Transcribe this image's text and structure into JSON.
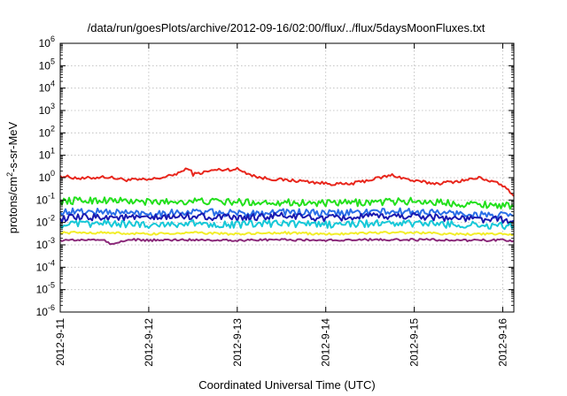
{
  "chart_data": {
    "type": "line",
    "title": "/data/run/goesPlots/archive/2012-09-16/02:00/flux/../flux/5daysMoonFluxes.txt",
    "xlabel": "Coordinated Universal Time (UTC)",
    "ylabel": {
      "prefix": "protons/cm",
      "sup": "2",
      "suffix": "-s-sr-MeV"
    },
    "y_scale": "log",
    "ylim": [
      1e-06,
      1000000.0
    ],
    "y_ticks": [
      {
        "base": "10",
        "exp": "-6"
      },
      {
        "base": "10",
        "exp": "-5"
      },
      {
        "base": "10",
        "exp": "-4"
      },
      {
        "base": "10",
        "exp": "-3"
      },
      {
        "base": "10",
        "exp": "-2"
      },
      {
        "base": "10",
        "exp": "-1"
      },
      {
        "base": "10",
        "exp": "0"
      },
      {
        "base": "10",
        "exp": "1"
      },
      {
        "base": "10",
        "exp": "2"
      },
      {
        "base": "10",
        "exp": "3"
      },
      {
        "base": "10",
        "exp": "4"
      },
      {
        "base": "10",
        "exp": "5"
      },
      {
        "base": "10",
        "exp": "6"
      }
    ],
    "xlim": [
      "2012-09-11",
      "2012-09-16 03:00"
    ],
    "x_ticks": [
      "2012-9-11",
      "2012-9-12",
      "2012-9-13",
      "2012-9-14",
      "2012-9-15",
      "2012-9-16"
    ],
    "grid": true,
    "series": [
      {
        "color": "#e8261c",
        "x": [
          "2012-09-11 00:00",
          "2012-09-11 06:00",
          "2012-09-11 12:00",
          "2012-09-11 18:00",
          "2012-09-12 00:00",
          "2012-09-12 06:00",
          "2012-09-12 11:00",
          "2012-09-12 12:00",
          "2012-09-12 18:00",
          "2012-09-13 00:00",
          "2012-09-13 06:00",
          "2012-09-13 12:00",
          "2012-09-13 18:00",
          "2012-09-14 00:00",
          "2012-09-14 06:00",
          "2012-09-14 12:00",
          "2012-09-14 18:00",
          "2012-09-15 00:00",
          "2012-09-15 06:00",
          "2012-09-15 12:00",
          "2012-09-15 18:00",
          "2012-09-16 00:00",
          "2012-09-16 03:00"
        ],
        "values": [
          1.2,
          0.9,
          1.1,
          0.8,
          0.8,
          1.2,
          2.6,
          1.4,
          2.2,
          2.4,
          1.0,
          0.8,
          0.7,
          0.55,
          0.5,
          0.8,
          1.3,
          0.7,
          0.55,
          0.7,
          1.0,
          0.45,
          0.15
        ]
      },
      {
        "color": "#22e01c",
        "x": [
          "2012-09-11 00:00",
          "2012-09-11 12:00",
          "2012-09-12 00:00",
          "2012-09-12 12:00",
          "2012-09-13 00:00",
          "2012-09-13 12:00",
          "2012-09-14 00:00",
          "2012-09-14 12:00",
          "2012-09-15 00:00",
          "2012-09-15 12:00",
          "2012-09-16 00:00",
          "2012-09-16 03:00"
        ],
        "values": [
          0.09,
          0.1,
          0.08,
          0.09,
          0.08,
          0.08,
          0.07,
          0.08,
          0.09,
          0.07,
          0.06,
          0.05
        ]
      },
      {
        "color": "#2a6fe8",
        "x": [
          "2012-09-11 00:00",
          "2012-09-11 12:00",
          "2012-09-12 00:00",
          "2012-09-12 12:00",
          "2012-09-13 00:00",
          "2012-09-13 12:00",
          "2012-09-14 00:00",
          "2012-09-14 12:00",
          "2012-09-15 00:00",
          "2012-09-15 12:00",
          "2012-09-16 00:00",
          "2012-09-16 03:00"
        ],
        "values": [
          0.03,
          0.03,
          0.025,
          0.03,
          0.025,
          0.03,
          0.025,
          0.03,
          0.03,
          0.025,
          0.02,
          0.02
        ]
      },
      {
        "color": "#1a1ab0",
        "x": [
          "2012-09-11 00:00",
          "2012-09-11 12:00",
          "2012-09-12 00:00",
          "2012-09-12 12:00",
          "2012-09-13 00:00",
          "2012-09-13 12:00",
          "2012-09-14 00:00",
          "2012-09-14 12:00",
          "2012-09-15 00:00",
          "2012-09-15 12:00",
          "2012-09-16 00:00",
          "2012-09-16 03:00"
        ],
        "values": [
          0.015,
          0.018,
          0.015,
          0.02,
          0.015,
          0.02,
          0.015,
          0.018,
          0.02,
          0.015,
          0.013,
          0.012
        ]
      },
      {
        "color": "#16c8d8",
        "x": [
          "2012-09-11 00:00",
          "2012-09-11 12:00",
          "2012-09-12 00:00",
          "2012-09-12 12:00",
          "2012-09-13 00:00",
          "2012-09-13 12:00",
          "2012-09-14 00:00",
          "2012-09-14 12:00",
          "2012-09-15 00:00",
          "2012-09-15 12:00",
          "2012-09-16 00:00",
          "2012-09-16 03:00"
        ],
        "values": [
          0.008,
          0.009,
          0.008,
          0.009,
          0.008,
          0.009,
          0.008,
          0.009,
          0.009,
          0.008,
          0.007,
          0.007
        ]
      },
      {
        "color": "#f2ee2a",
        "x": [
          "2012-09-11 00:00",
          "2012-09-11 12:00",
          "2012-09-12 00:00",
          "2012-09-12 12:00",
          "2012-09-13 00:00",
          "2012-09-13 12:00",
          "2012-09-14 00:00",
          "2012-09-14 12:00",
          "2012-09-15 00:00",
          "2012-09-15 12:00",
          "2012-09-16 00:00",
          "2012-09-16 03:00"
        ],
        "values": [
          0.0035,
          0.0035,
          0.003,
          0.0035,
          0.003,
          0.0035,
          0.003,
          0.0035,
          0.0035,
          0.003,
          0.003,
          0.003
        ]
      },
      {
        "color": "#8b2a7a",
        "x": [
          "2012-09-11 00:00",
          "2012-09-11 12:00",
          "2012-09-11 14:00",
          "2012-09-11 18:00",
          "2012-09-12 00:00",
          "2012-09-12 12:00",
          "2012-09-13 00:00",
          "2012-09-13 12:00",
          "2012-09-14 00:00",
          "2012-09-14 12:00",
          "2012-09-15 00:00",
          "2012-09-15 12:00",
          "2012-09-16 00:00",
          "2012-09-16 03:00"
        ],
        "values": [
          0.0016,
          0.0017,
          0.001,
          0.0017,
          0.0016,
          0.0017,
          0.0016,
          0.0017,
          0.0016,
          0.0017,
          0.0017,
          0.0016,
          0.0016,
          0.0015
        ]
      }
    ]
  }
}
